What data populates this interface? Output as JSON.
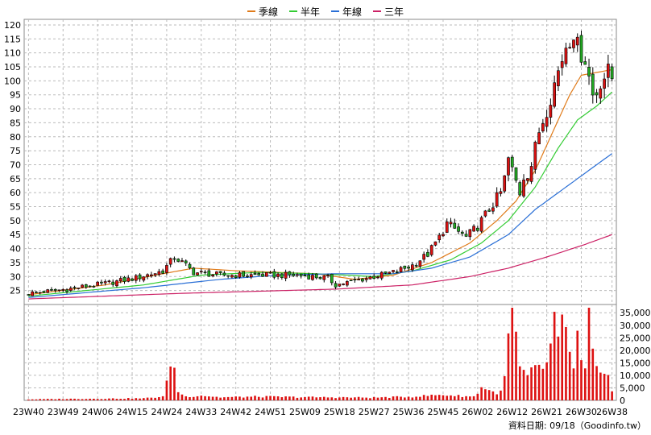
{
  "chart_data": {
    "type": "candlestick",
    "legend": [
      {
        "name": "季線",
        "color": "#e07b1a"
      },
      {
        "name": "半年",
        "color": "#33cc33"
      },
      {
        "name": "年線",
        "color": "#2a6fd6"
      },
      {
        "name": "三年",
        "color": "#cc2266"
      }
    ],
    "price_axis": {
      "min": 20,
      "max": 122,
      "ticks": [
        25,
        30,
        35,
        40,
        45,
        50,
        55,
        60,
        65,
        70,
        75,
        80,
        85,
        90,
        95,
        100,
        105,
        110,
        115,
        120
      ]
    },
    "volume_axis": {
      "min": 0,
      "max": 37000,
      "ticks": [
        0,
        5000,
        10000,
        15000,
        20000,
        25000,
        30000,
        35000
      ],
      "tick_labels": [
        "0",
        "5,000",
        "10,000",
        "15,000",
        "20,000",
        "25,000",
        "30,000",
        "35,000"
      ]
    },
    "x_ticks": [
      {
        "label": "23W40",
        "i": 0
      },
      {
        "label": "23W49",
        "i": 9
      },
      {
        "label": "24W06",
        "i": 18
      },
      {
        "label": "24W15",
        "i": 27
      },
      {
        "label": "24W24",
        "i": 36
      },
      {
        "label": "24W33",
        "i": 45
      },
      {
        "label": "24W42",
        "i": 54
      },
      {
        "label": "24W51",
        "i": 63
      },
      {
        "label": "25W09",
        "i": 72
      },
      {
        "label": "25W18",
        "i": 81
      },
      {
        "label": "25W27",
        "i": 90
      },
      {
        "label": "25W36",
        "i": 99
      },
      {
        "label": "25W45",
        "i": 108
      },
      {
        "label": "26W02",
        "i": 117
      },
      {
        "label": "26W12",
        "i": 126
      },
      {
        "label": "26W21",
        "i": 135
      },
      {
        "label": "26W30",
        "i": 144
      },
      {
        "label": "26W38",
        "i": 152
      }
    ],
    "weeks": 153,
    "close_points": [
      [
        0,
        24
      ],
      [
        10,
        25.5
      ],
      [
        20,
        27.5
      ],
      [
        28,
        29.5
      ],
      [
        35,
        32
      ],
      [
        38,
        37
      ],
      [
        41,
        34
      ],
      [
        43,
        31.5
      ],
      [
        50,
        30.5
      ],
      [
        60,
        30.5
      ],
      [
        70,
        30.5
      ],
      [
        78,
        29.5
      ],
      [
        80,
        27
      ],
      [
        85,
        28.5
      ],
      [
        90,
        30
      ],
      [
        95,
        31.5
      ],
      [
        100,
        34
      ],
      [
        104,
        38
      ],
      [
        107,
        44
      ],
      [
        109,
        49
      ],
      [
        112,
        46
      ],
      [
        114,
        44
      ],
      [
        117,
        48
      ],
      [
        120,
        54
      ],
      [
        123,
        60
      ],
      [
        124,
        65
      ],
      [
        125,
        72
      ],
      [
        127,
        64
      ],
      [
        128,
        60
      ],
      [
        129,
        66
      ],
      [
        130,
        67
      ],
      [
        131,
        70
      ],
      [
        132,
        76
      ],
      [
        133,
        82
      ],
      [
        135,
        90
      ],
      [
        137,
        99
      ],
      [
        139,
        108
      ],
      [
        140,
        113
      ],
      [
        142,
        118
      ],
      [
        143,
        112
      ],
      [
        145,
        108
      ],
      [
        147,
        95
      ],
      [
        148,
        96
      ],
      [
        149,
        100
      ],
      [
        151,
        103
      ],
      [
        152,
        101
      ]
    ],
    "ma_points": {
      "季線": [
        [
          0,
          23.5
        ],
        [
          20,
          27
        ],
        [
          35,
          31
        ],
        [
          43,
          33
        ],
        [
          55,
          32
        ],
        [
          75,
          31
        ],
        [
          85,
          29
        ],
        [
          95,
          30.5
        ],
        [
          105,
          35
        ],
        [
          115,
          42
        ],
        [
          122,
          50
        ],
        [
          127,
          57
        ],
        [
          132,
          68
        ],
        [
          137,
          83
        ],
        [
          141,
          95
        ],
        [
          144,
          102
        ],
        [
          148,
          103
        ],
        [
          152,
          104
        ]
      ],
      "半年": [
        [
          0,
          23
        ],
        [
          30,
          27
        ],
        [
          45,
          30.5
        ],
        [
          60,
          31.5
        ],
        [
          75,
          31
        ],
        [
          90,
          30
        ],
        [
          100,
          32
        ],
        [
          110,
          36
        ],
        [
          118,
          42
        ],
        [
          125,
          50
        ],
        [
          132,
          62
        ],
        [
          138,
          76
        ],
        [
          143,
          86
        ],
        [
          148,
          91
        ],
        [
          152,
          96
        ]
      ],
      "年線": [
        [
          0,
          22.5
        ],
        [
          30,
          26
        ],
        [
          50,
          29
        ],
        [
          65,
          30.5
        ],
        [
          80,
          31
        ],
        [
          95,
          31
        ],
        [
          105,
          33
        ],
        [
          115,
          37
        ],
        [
          125,
          45
        ],
        [
          132,
          54
        ],
        [
          140,
          62
        ],
        [
          146,
          68
        ],
        [
          152,
          74
        ]
      ],
      "三年": [
        [
          0,
          22
        ],
        [
          40,
          24
        ],
        [
          80,
          25.5
        ],
        [
          100,
          27
        ],
        [
          115,
          30
        ],
        [
          125,
          33
        ],
        [
          135,
          37
        ],
        [
          145,
          41.5
        ],
        [
          152,
          45
        ]
      ]
    },
    "volume_points": [
      [
        0,
        400
      ],
      [
        10,
        600
      ],
      [
        20,
        700
      ],
      [
        30,
        800
      ],
      [
        35,
        1500
      ],
      [
        36,
        6500
      ],
      [
        37,
        16500
      ],
      [
        38,
        12000
      ],
      [
        39,
        3500
      ],
      [
        41,
        1500
      ],
      [
        45,
        2000
      ],
      [
        50,
        1200
      ],
      [
        60,
        1500
      ],
      [
        70,
        1300
      ],
      [
        80,
        1200
      ],
      [
        90,
        1100
      ],
      [
        100,
        1500
      ],
      [
        105,
        2000
      ],
      [
        108,
        2200
      ],
      [
        112,
        1800
      ],
      [
        116,
        1500
      ],
      [
        118,
        5000
      ],
      [
        120,
        4500
      ],
      [
        122,
        2200
      ],
      [
        124,
        8000
      ],
      [
        125,
        24000
      ],
      [
        126,
        37000
      ],
      [
        127,
        25000
      ],
      [
        128,
        12000
      ],
      [
        130,
        9500
      ],
      [
        132,
        12000
      ],
      [
        134,
        12500
      ],
      [
        136,
        20000
      ],
      [
        137,
        34500
      ],
      [
        138,
        22000
      ],
      [
        139,
        28000
      ],
      [
        140,
        26000
      ],
      [
        141,
        17500
      ],
      [
        142,
        14000
      ],
      [
        143,
        26000
      ],
      [
        144,
        14000
      ],
      [
        145,
        12000
      ],
      [
        146,
        31000
      ],
      [
        147,
        18000
      ],
      [
        148,
        12000
      ],
      [
        149,
        9500
      ],
      [
        150,
        8500
      ],
      [
        151,
        9000
      ],
      [
        152,
        4000
      ]
    ]
  },
  "source_note": "資料日期: 09/18（Goodinfo.tw）"
}
